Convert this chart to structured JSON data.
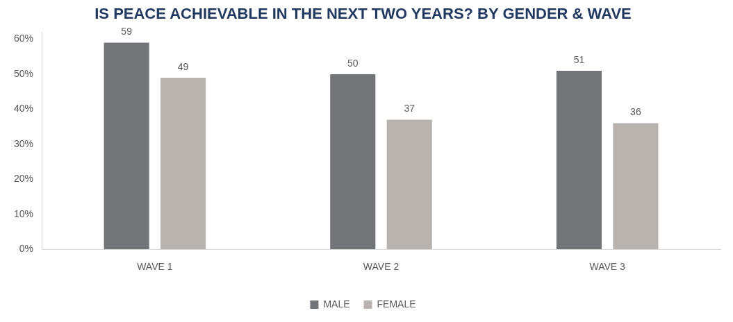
{
  "chart_data": {
    "type": "bar",
    "title": "IS PEACE ACHIEVABLE IN THE NEXT TWO YEARS? BY GENDER & WAVE",
    "categories": [
      "WAVE 1",
      "WAVE 2",
      "WAVE 3"
    ],
    "series": [
      {
        "name": "MALE",
        "color": "#737478",
        "values": [
          59,
          50,
          51
        ]
      },
      {
        "name": "FEMALE",
        "color": "#b8b3ae",
        "values": [
          49,
          37,
          36
        ]
      }
    ],
    "ylim": [
      0,
      62
    ],
    "yticks": [
      {
        "value": 0,
        "label": "0%"
      },
      {
        "value": 10,
        "label": "10%"
      },
      {
        "value": 20,
        "label": "20%"
      },
      {
        "value": 30,
        "label": "30%"
      },
      {
        "value": 40,
        "label": "40%"
      },
      {
        "value": 50,
        "label": "50%"
      },
      {
        "value": 60,
        "label": "60%"
      }
    ],
    "grid": false,
    "legend": "bottom",
    "data_labels": true
  }
}
